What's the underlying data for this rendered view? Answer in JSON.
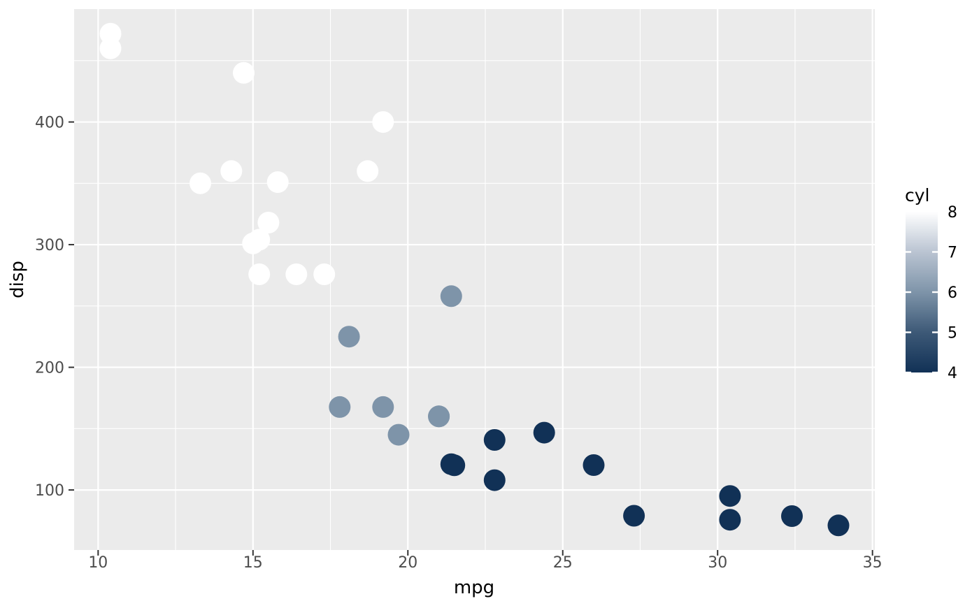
{
  "chart_data": {
    "type": "scatter",
    "title": "",
    "xlabel": "mpg",
    "ylabel": "disp",
    "x_domain": [
      9.225,
      35.075
    ],
    "y_domain": [
      51.055,
      492.045
    ],
    "x_ticks": [
      10,
      15,
      20,
      25,
      30,
      35
    ],
    "y_ticks": [
      100,
      200,
      300,
      400
    ],
    "x_minor_gridlines": [
      12.5,
      17.5,
      22.5,
      27.5,
      32.5
    ],
    "y_minor_gridlines": [
      150,
      250,
      350,
      450
    ],
    "grid": true,
    "legend_position": "right",
    "point_radius": 15.5,
    "points": [
      {
        "mpg": 21.0,
        "disp": 160.0,
        "cyl": 6
      },
      {
        "mpg": 21.0,
        "disp": 160.0,
        "cyl": 6
      },
      {
        "mpg": 22.8,
        "disp": 108.0,
        "cyl": 4
      },
      {
        "mpg": 21.4,
        "disp": 258.0,
        "cyl": 6
      },
      {
        "mpg": 18.7,
        "disp": 360.0,
        "cyl": 8
      },
      {
        "mpg": 18.1,
        "disp": 225.0,
        "cyl": 6
      },
      {
        "mpg": 14.3,
        "disp": 360.0,
        "cyl": 8
      },
      {
        "mpg": 24.4,
        "disp": 146.7,
        "cyl": 4
      },
      {
        "mpg": 22.8,
        "disp": 140.8,
        "cyl": 4
      },
      {
        "mpg": 19.2,
        "disp": 167.6,
        "cyl": 6
      },
      {
        "mpg": 17.8,
        "disp": 167.6,
        "cyl": 6
      },
      {
        "mpg": 16.4,
        "disp": 275.8,
        "cyl": 8
      },
      {
        "mpg": 17.3,
        "disp": 275.8,
        "cyl": 8
      },
      {
        "mpg": 15.2,
        "disp": 275.8,
        "cyl": 8
      },
      {
        "mpg": 10.4,
        "disp": 472.0,
        "cyl": 8
      },
      {
        "mpg": 10.4,
        "disp": 460.0,
        "cyl": 8
      },
      {
        "mpg": 14.7,
        "disp": 440.0,
        "cyl": 8
      },
      {
        "mpg": 32.4,
        "disp": 78.7,
        "cyl": 4
      },
      {
        "mpg": 30.4,
        "disp": 75.7,
        "cyl": 4
      },
      {
        "mpg": 33.9,
        "disp": 71.1,
        "cyl": 4
      },
      {
        "mpg": 21.5,
        "disp": 120.1,
        "cyl": 4
      },
      {
        "mpg": 15.5,
        "disp": 318.0,
        "cyl": 8
      },
      {
        "mpg": 15.2,
        "disp": 304.0,
        "cyl": 8
      },
      {
        "mpg": 13.3,
        "disp": 350.0,
        "cyl": 8
      },
      {
        "mpg": 19.2,
        "disp": 400.0,
        "cyl": 8
      },
      {
        "mpg": 27.3,
        "disp": 79.0,
        "cyl": 4
      },
      {
        "mpg": 26.0,
        "disp": 120.3,
        "cyl": 4
      },
      {
        "mpg": 30.4,
        "disp": 95.1,
        "cyl": 4
      },
      {
        "mpg": 15.8,
        "disp": 351.0,
        "cyl": 8
      },
      {
        "mpg": 19.7,
        "disp": 145.0,
        "cyl": 6
      },
      {
        "mpg": 15.0,
        "disp": 301.0,
        "cyl": 8
      },
      {
        "mpg": 21.4,
        "disp": 121.0,
        "cyl": 4
      }
    ],
    "color_scale": {
      "variable": "cyl",
      "domain": [
        4,
        8
      ],
      "stops": [
        {
          "value": 8,
          "color": "#FFFFFF"
        },
        {
          "value": 7,
          "color": "#BAC4D2"
        },
        {
          "value": 6,
          "color": "#7E94A9"
        },
        {
          "value": 5,
          "color": "#3D5977"
        },
        {
          "value": 4,
          "color": "#113156"
        }
      ]
    },
    "legend": {
      "title": "cyl",
      "breaks": [
        8,
        7,
        6,
        5,
        4
      ]
    }
  },
  "style": {
    "figure_background": "#FFFFFF",
    "panel_background": "#EBEBEB",
    "gridline_color": "#FFFFFF",
    "tick_mark_color": "#333333",
    "tick_label_color": "#4D4D4D",
    "title_color": "#000000",
    "legend_tick_color": "#FFFFFF"
  }
}
